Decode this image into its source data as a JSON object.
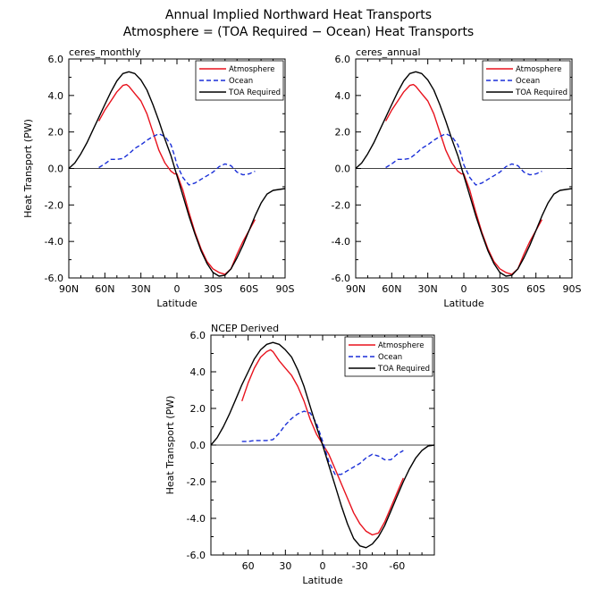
{
  "figure": {
    "title_line1": "Annual Implied Northward Heat Transports",
    "title_line2": "Atmosphere = (TOA Required − Ocean) Heat Transports"
  },
  "chart_data": [
    {
      "type": "line",
      "title": "ceres_monthly",
      "xlabel": "Latitude",
      "ylabel": "Heat Transport (PW)",
      "xlim": [
        90,
        -90
      ],
      "ylim": [
        -6,
        6
      ],
      "xticks": [
        90,
        60,
        30,
        0,
        -30,
        -60,
        -90
      ],
      "xtick_labels": [
        "90N",
        "60N",
        "30N",
        "0",
        "30S",
        "60S",
        "90S"
      ],
      "yticks": [
        -6,
        -4,
        -2,
        0,
        2,
        4,
        6
      ],
      "ytick_labels": [
        "-6.0",
        "-4.0",
        "-2.0",
        "0.0",
        "2.0",
        "4.0",
        "6.0"
      ],
      "legend": "top-right",
      "series": [
        {
          "name": "Atmosphere",
          "color": "#e8121d",
          "dash": "solid",
          "x": [
            65,
            60,
            55,
            50,
            45,
            42,
            40,
            35,
            30,
            25,
            20,
            15,
            10,
            5,
            2,
            0,
            -5,
            -10,
            -15,
            -20,
            -25,
            -30,
            -35,
            -40,
            -45,
            -50,
            -55,
            -60,
            -65
          ],
          "y": [
            2.6,
            3.2,
            3.7,
            4.2,
            4.55,
            4.6,
            4.5,
            4.1,
            3.7,
            3.0,
            2.0,
            1.0,
            0.3,
            -0.15,
            -0.3,
            -0.3,
            -1.2,
            -2.4,
            -3.5,
            -4.4,
            -5.1,
            -5.5,
            -5.7,
            -5.8,
            -5.5,
            -4.7,
            -4.0,
            -3.4,
            -2.8
          ]
        },
        {
          "name": "Ocean",
          "color": "#1a2fd8",
          "dash": "dashed",
          "x": [
            65,
            60,
            55,
            50,
            45,
            40,
            35,
            30,
            25,
            20,
            15,
            10,
            5,
            2,
            0,
            -5,
            -10,
            -15,
            -20,
            -25,
            -30,
            -35,
            -40,
            -45,
            -50,
            -55,
            -60,
            -65
          ],
          "y": [
            0.05,
            0.25,
            0.5,
            0.5,
            0.55,
            0.8,
            1.1,
            1.3,
            1.55,
            1.75,
            1.9,
            1.75,
            1.3,
            0.7,
            0.2,
            -0.5,
            -0.9,
            -0.8,
            -0.6,
            -0.4,
            -0.2,
            0.1,
            0.25,
            0.15,
            -0.2,
            -0.35,
            -0.3,
            -0.15
          ]
        },
        {
          "name": "TOA Required",
          "color": "#000000",
          "dash": "solid",
          "x": [
            90,
            85,
            80,
            75,
            70,
            65,
            60,
            55,
            50,
            45,
            40,
            35,
            30,
            25,
            20,
            15,
            10,
            5,
            0,
            -5,
            -10,
            -15,
            -20,
            -25,
            -30,
            -35,
            -40,
            -45,
            -50,
            -55,
            -60,
            -65,
            -70,
            -75,
            -80,
            -85,
            -90
          ],
          "y": [
            0,
            0.3,
            0.8,
            1.4,
            2.1,
            2.8,
            3.5,
            4.2,
            4.8,
            5.2,
            5.3,
            5.2,
            4.85,
            4.3,
            3.5,
            2.6,
            1.6,
            0.7,
            -0.4,
            -1.5,
            -2.6,
            -3.6,
            -4.5,
            -5.2,
            -5.7,
            -5.9,
            -5.85,
            -5.5,
            -4.9,
            -4.2,
            -3.4,
            -2.6,
            -1.9,
            -1.4,
            -1.2,
            -1.15,
            -1.1
          ]
        }
      ]
    },
    {
      "type": "line",
      "title": "ceres_annual",
      "xlabel": "Latitude",
      "ylabel": "",
      "xlim": [
        90,
        -90
      ],
      "ylim": [
        -6,
        6
      ],
      "xticks": [
        90,
        60,
        30,
        0,
        -30,
        -60,
        -90
      ],
      "xtick_labels": [
        "90N",
        "60N",
        "30N",
        "0",
        "30S",
        "60S",
        "90S"
      ],
      "yticks": [
        -6,
        -4,
        -2,
        0,
        2,
        4,
        6
      ],
      "ytick_labels": [
        "-6.0",
        "-4.0",
        "-2.0",
        "0.0",
        "2.0",
        "4.0",
        "6.0"
      ],
      "legend": "top-right",
      "series": [
        {
          "name": "Atmosphere",
          "color": "#e8121d",
          "dash": "solid",
          "x": [
            65,
            60,
            55,
            50,
            45,
            42,
            40,
            35,
            30,
            25,
            20,
            15,
            10,
            5,
            2,
            0,
            -5,
            -10,
            -15,
            -20,
            -25,
            -30,
            -35,
            -40,
            -45,
            -50,
            -55,
            -60,
            -65
          ],
          "y": [
            2.6,
            3.2,
            3.7,
            4.2,
            4.55,
            4.6,
            4.5,
            4.1,
            3.7,
            3.0,
            2.0,
            1.0,
            0.3,
            -0.15,
            -0.3,
            -0.3,
            -1.2,
            -2.4,
            -3.5,
            -4.4,
            -5.1,
            -5.5,
            -5.7,
            -5.8,
            -5.5,
            -4.7,
            -4.0,
            -3.4,
            -2.8
          ]
        },
        {
          "name": "Ocean",
          "color": "#1a2fd8",
          "dash": "dashed",
          "x": [
            65,
            60,
            55,
            50,
            45,
            40,
            35,
            30,
            25,
            20,
            15,
            10,
            5,
            2,
            0,
            -5,
            -10,
            -15,
            -20,
            -25,
            -30,
            -35,
            -40,
            -45,
            -50,
            -55,
            -60,
            -65
          ],
          "y": [
            0.05,
            0.25,
            0.5,
            0.5,
            0.55,
            0.8,
            1.1,
            1.3,
            1.55,
            1.75,
            1.9,
            1.75,
            1.3,
            0.7,
            0.2,
            -0.5,
            -0.9,
            -0.8,
            -0.6,
            -0.4,
            -0.2,
            0.1,
            0.25,
            0.15,
            -0.2,
            -0.35,
            -0.3,
            -0.15
          ]
        },
        {
          "name": "TOA Required",
          "color": "#000000",
          "dash": "solid",
          "x": [
            90,
            85,
            80,
            75,
            70,
            65,
            60,
            55,
            50,
            45,
            40,
            35,
            30,
            25,
            20,
            15,
            10,
            5,
            0,
            -5,
            -10,
            -15,
            -20,
            -25,
            -30,
            -35,
            -40,
            -45,
            -50,
            -55,
            -60,
            -65,
            -70,
            -75,
            -80,
            -85,
            -90
          ],
          "y": [
            0,
            0.3,
            0.8,
            1.4,
            2.1,
            2.8,
            3.5,
            4.2,
            4.8,
            5.2,
            5.3,
            5.2,
            4.85,
            4.3,
            3.5,
            2.6,
            1.6,
            0.7,
            -0.4,
            -1.5,
            -2.6,
            -3.6,
            -4.5,
            -5.2,
            -5.7,
            -5.9,
            -5.85,
            -5.5,
            -4.9,
            -4.2,
            -3.4,
            -2.6,
            -1.9,
            -1.4,
            -1.2,
            -1.15,
            -1.1
          ]
        }
      ]
    },
    {
      "type": "line",
      "title": "NCEP Derived",
      "xlabel": "Latitude",
      "ylabel": "Heat Transport (PW)",
      "xlim": [
        90,
        -90
      ],
      "ylim": [
        -6,
        6
      ],
      "xticks": [
        60,
        30,
        0,
        -30,
        -60
      ],
      "xtick_labels": [
        "60",
        "30",
        "0",
        "-30",
        "-60"
      ],
      "yticks": [
        -6,
        -4,
        -2,
        0,
        2,
        4,
        6
      ],
      "ytick_labels": [
        "-6.0",
        "-4.0",
        "-2.0",
        "0.0",
        "2.0",
        "4.0",
        "6.0"
      ],
      "legend": "top-right",
      "series": [
        {
          "name": "Atmosphere",
          "color": "#e8121d",
          "dash": "solid",
          "x": [
            65,
            60,
            55,
            50,
            45,
            42,
            40,
            35,
            30,
            25,
            20,
            15,
            10,
            5,
            0,
            -5,
            -10,
            -15,
            -20,
            -25,
            -30,
            -35,
            -40,
            -45,
            -50,
            -55,
            -60,
            -65
          ],
          "y": [
            2.4,
            3.4,
            4.2,
            4.8,
            5.1,
            5.2,
            5.1,
            4.6,
            4.2,
            3.8,
            3.2,
            2.4,
            1.4,
            0.6,
            0.05,
            -0.5,
            -1.3,
            -2.1,
            -2.9,
            -3.7,
            -4.3,
            -4.7,
            -4.9,
            -4.8,
            -4.2,
            -3.4,
            -2.6,
            -1.8
          ]
        },
        {
          "name": "Ocean",
          "color": "#1a2fd8",
          "dash": "dashed",
          "x": [
            65,
            60,
            55,
            50,
            45,
            40,
            35,
            30,
            25,
            20,
            15,
            10,
            5,
            0,
            -5,
            -10,
            -15,
            -20,
            -25,
            -30,
            -35,
            -40,
            -45,
            -50,
            -55,
            -60,
            -65
          ],
          "y": [
            0.2,
            0.2,
            0.25,
            0.25,
            0.25,
            0.3,
            0.65,
            1.1,
            1.45,
            1.7,
            1.85,
            1.75,
            1.2,
            0.2,
            -0.9,
            -1.6,
            -1.6,
            -1.4,
            -1.2,
            -1.0,
            -0.7,
            -0.5,
            -0.6,
            -0.8,
            -0.8,
            -0.5,
            -0.3
          ]
        },
        {
          "name": "TOA Required",
          "color": "#000000",
          "dash": "solid",
          "x": [
            90,
            85,
            80,
            75,
            70,
            65,
            60,
            55,
            50,
            45,
            40,
            35,
            30,
            25,
            20,
            15,
            10,
            5,
            0,
            -5,
            -10,
            -15,
            -20,
            -25,
            -30,
            -35,
            -40,
            -45,
            -50,
            -55,
            -60,
            -65,
            -70,
            -75,
            -80,
            -85,
            -90
          ],
          "y": [
            0,
            0.4,
            1.0,
            1.7,
            2.5,
            3.3,
            4.0,
            4.7,
            5.2,
            5.5,
            5.6,
            5.5,
            5.2,
            4.8,
            4.1,
            3.2,
            2.1,
            1.0,
            0,
            -1.1,
            -2.2,
            -3.3,
            -4.3,
            -5.1,
            -5.5,
            -5.6,
            -5.4,
            -5.0,
            -4.4,
            -3.6,
            -2.8,
            -2.0,
            -1.3,
            -0.7,
            -0.3,
            -0.05,
            0
          ]
        }
      ]
    }
  ]
}
